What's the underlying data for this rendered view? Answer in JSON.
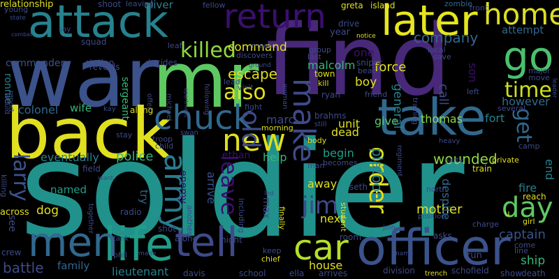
{
  "colors": {
    "background": "#000000",
    "palette": [
      "#440154",
      "#482878",
      "#3e4a89",
      "#31688e",
      "#26828e",
      "#1f9e89",
      "#35b779",
      "#6ece58",
      "#b5de2b",
      "#fde725"
    ]
  },
  "words": [
    {
      "text": "soldier",
      "color": "#21918c"
    },
    {
      "text": "find",
      "color": "#482878"
    },
    {
      "text": "war",
      "color": "#3b528b"
    },
    {
      "text": "mr",
      "color": "#5ec962"
    },
    {
      "text": "back",
      "color": "#e0e020"
    },
    {
      "text": "take",
      "color": "#31688e"
    },
    {
      "text": "attack",
      "color": "#26828e"
    },
    {
      "text": "later",
      "color": "#e6e61e"
    },
    {
      "text": "go",
      "color": "#4ac16d"
    },
    {
      "text": "home",
      "color": "#dddd25"
    },
    {
      "text": "return",
      "color": "#3b0f70"
    },
    {
      "text": "officer",
      "color": "#3b528b"
    },
    {
      "text": "life",
      "color": "#1f9e89"
    },
    {
      "text": "men",
      "color": "#31688e"
    },
    {
      "text": "tell",
      "color": "#3e4a89"
    },
    {
      "text": "chuck",
      "color": "#31688e"
    },
    {
      "text": "car",
      "color": "#b5de2b"
    },
    {
      "text": "new",
      "color": "#e0e020"
    },
    {
      "text": "army",
      "color": "#2a7b8e"
    },
    {
      "text": "day",
      "color": "#5ec962"
    },
    {
      "text": "take",
      "color": "#31688e"
    },
    {
      "text": "make",
      "color": "#3e4a89"
    },
    {
      "text": "killed",
      "color": "#8fd744"
    },
    {
      "text": "also",
      "color": "#e0e020"
    },
    {
      "text": "order",
      "color": "#e0e020"
    },
    {
      "text": "old",
      "color": "#3e4a89"
    },
    {
      "text": "time",
      "color": "#cce01e"
    },
    {
      "text": "jim",
      "color": "#3e4a89"
    },
    {
      "text": "leave",
      "color": "#3b0f70"
    },
    {
      "text": "get",
      "color": "#31688e"
    },
    {
      "text": "larry",
      "color": "#3b528b"
    },
    {
      "text": "escape",
      "color": "#e0e020"
    },
    {
      "text": "company",
      "color": "#31688e"
    },
    {
      "text": "command",
      "color": "#e0e020"
    },
    {
      "text": "wounded",
      "color": "#8fd744"
    },
    {
      "text": "eventually",
      "color": "#26828e"
    },
    {
      "text": "police",
      "color": "#35b779"
    },
    {
      "text": "help",
      "color": "#35b779"
    },
    {
      "text": "arrive",
      "color": "#3b528b"
    },
    {
      "text": "captain",
      "color": "#3b528b"
    },
    {
      "text": "mother",
      "color": "#e0e020"
    },
    {
      "text": "ship",
      "color": "#35b779"
    },
    {
      "text": "battle",
      "color": "#3e4a89"
    },
    {
      "text": "house",
      "color": "#e0e020"
    },
    {
      "text": "family",
      "color": "#31688e"
    },
    {
      "text": "lieutenant",
      "color": "#26828e"
    },
    {
      "text": "dead",
      "color": "#e0e020"
    },
    {
      "text": "platoon",
      "color": "#26828e"
    },
    {
      "text": "fort",
      "color": "#26828e"
    },
    {
      "text": "thomas",
      "color": "#8fd744"
    },
    {
      "text": "give",
      "color": "#5ec962"
    },
    {
      "text": "unit",
      "color": "#e0e020"
    },
    {
      "text": "marc",
      "color": "#3e4a89"
    },
    {
      "text": "begin",
      "color": "#1f9e89"
    },
    {
      "text": "ethan",
      "color": "#3b0f70"
    },
    {
      "text": "away",
      "color": "#e0e020"
    },
    {
      "text": "named",
      "color": "#1f9e89"
    },
    {
      "text": "dog",
      "color": "#e0e020"
    },
    {
      "text": "colonel",
      "color": "#31688e"
    },
    {
      "text": "wife",
      "color": "#35b779"
    },
    {
      "text": "however",
      "color": "#31688e"
    },
    {
      "text": "call",
      "color": "#3e4a89"
    },
    {
      "text": "general",
      "color": "#26828e"
    },
    {
      "text": "boy",
      "color": "#e0e020"
    },
    {
      "text": "force",
      "color": "#e0e020"
    },
    {
      "text": "malcolm",
      "color": "#35b779"
    },
    {
      "text": "one",
      "color": "#3b0f70"
    },
    {
      "text": "son",
      "color": "#3b0f70"
    },
    {
      "text": "attempt",
      "color": "#31688e"
    },
    {
      "text": "end",
      "color": "#26828e"
    },
    {
      "text": "fire",
      "color": "#2a7b8e"
    },
    {
      "text": "next",
      "color": "#e0e020"
    },
    {
      "text": "despite",
      "color": "#31688e"
    },
    {
      "text": "max",
      "color": "#3e4a89"
    },
    {
      "text": "try",
      "color": "#31688e"
    },
    {
      "text": "enemy",
      "color": "#3b0f70"
    },
    {
      "text": "see",
      "color": "#3e4a89"
    },
    {
      "text": "ronnie",
      "color": "#26828e"
    },
    {
      "text": "sergeant",
      "color": "#35b779"
    },
    {
      "text": "commander",
      "color": "#3b528b"
    },
    {
      "text": "oliver",
      "color": "#26828e"
    },
    {
      "text": "shoot",
      "color": "#3e4a89"
    },
    {
      "text": "leaving",
      "color": "#3e4a89"
    },
    {
      "text": "fellow",
      "color": "#3e4a89"
    },
    {
      "text": "greta",
      "color": "#e0e020"
    },
    {
      "text": "island",
      "color": "#e0e020"
    },
    {
      "text": "zombie",
      "color": "#31688e"
    },
    {
      "text": "front",
      "color": "#3e4a89"
    },
    {
      "text": "relationship",
      "color": "#e0e020"
    },
    {
      "text": "young",
      "color": "#3e4a89"
    },
    {
      "text": "state",
      "color": "#3e4a89"
    },
    {
      "text": "squad",
      "color": "#3e4a89"
    },
    {
      "text": "leaf",
      "color": "#3e4a89"
    },
    {
      "text": "year",
      "color": "#3e4a89"
    },
    {
      "text": "drive",
      "color": "#3e4a89"
    },
    {
      "text": "group",
      "color": "#3e4a89"
    },
    {
      "text": "station",
      "color": "#3e4a89"
    },
    {
      "text": "decides",
      "color": "#3e4a89"
    },
    {
      "text": "discovers",
      "color": "#3e4a89"
    },
    {
      "text": "meet",
      "color": "#3e4a89"
    },
    {
      "text": "last",
      "color": "#3e4a89"
    },
    {
      "text": "local",
      "color": "#3e4a89"
    },
    {
      "text": "save",
      "color": "#3e4a89"
    },
    {
      "text": "reveals",
      "color": "#3e4a89"
    },
    {
      "text": "ground",
      "color": "#3e4a89"
    },
    {
      "text": "town",
      "color": "#e0e020"
    },
    {
      "text": "sniper",
      "color": "#3e4a89"
    },
    {
      "text": "beach",
      "color": "#3e4a89"
    },
    {
      "text": "major",
      "color": "#3e4a89"
    },
    {
      "text": "move",
      "color": "#3e4a89"
    },
    {
      "text": "kill",
      "color": "#e0e020"
    },
    {
      "text": "ryan",
      "color": "#3e4a89"
    },
    {
      "text": "friend",
      "color": "#3e4a89"
    },
    {
      "text": "left",
      "color": "#3e4a89"
    },
    {
      "text": "lead",
      "color": "#3e4a89"
    },
    {
      "text": "visit",
      "color": "#3e4a89"
    },
    {
      "text": "woman",
      "color": "#3e4a89"
    },
    {
      "text": "fight",
      "color": "#3e4a89"
    },
    {
      "text": "training",
      "color": "#3e4a89"
    },
    {
      "text": "several",
      "color": "#3e4a89"
    },
    {
      "text": "camp",
      "color": "#3e4a89"
    },
    {
      "text": "kay",
      "color": "#3e4a89"
    },
    {
      "text": "along",
      "color": "#e0e020"
    },
    {
      "text": "michael",
      "color": "#3e4a89"
    },
    {
      "text": "following",
      "color": "#3e4a89"
    },
    {
      "text": "morning",
      "color": "#e0e020"
    },
    {
      "text": "brahms",
      "color": "#3e4a89"
    },
    {
      "text": "still",
      "color": "#3e4a89"
    },
    {
      "text": "would",
      "color": "#3e4a89"
    },
    {
      "text": "report",
      "color": "#3e4a89"
    },
    {
      "text": "offer",
      "color": "#3e4a89"
    },
    {
      "text": "apartment",
      "color": "#3e4a89"
    },
    {
      "text": "stay",
      "color": "#3e4a89"
    },
    {
      "text": "troop",
      "color": "#3e4a89"
    },
    {
      "text": "swan",
      "color": "#3e4a89"
    },
    {
      "text": "child",
      "color": "#3e4a89"
    },
    {
      "text": "body",
      "color": "#e0e020"
    },
    {
      "text": "man",
      "color": "#3e4a89"
    },
    {
      "text": "becomes",
      "color": "#3e4a89"
    },
    {
      "text": "regiment",
      "color": "#3e4a89"
    },
    {
      "text": "heavy",
      "color": "#3e4a89"
    },
    {
      "text": "party",
      "color": "#3e4a89"
    },
    {
      "text": "private",
      "color": "#e0e020"
    },
    {
      "text": "train",
      "color": "#e0e020"
    },
    {
      "text": "north",
      "color": "#3e4a89"
    },
    {
      "text": "reach",
      "color": "#e0e020"
    },
    {
      "text": "charge",
      "color": "#3e4a89"
    },
    {
      "text": "girl",
      "color": "#e0e020"
    },
    {
      "text": "field",
      "color": "#3e4a89"
    },
    {
      "text": "want",
      "color": "#3e4a89"
    },
    {
      "text": "killing",
      "color": "#3e4a89"
    },
    {
      "text": "radio",
      "color": "#3e4a89"
    },
    {
      "text": "together",
      "color": "#3e4a89"
    },
    {
      "text": "another",
      "color": "#3e4a89"
    },
    {
      "text": "including",
      "color": "#3e4a89"
    },
    {
      "text": "led",
      "color": "#3e4a89"
    },
    {
      "text": "finally",
      "color": "#e0e020"
    },
    {
      "text": "student",
      "color": "#e0e020"
    },
    {
      "text": "seth",
      "color": "#3e4a89"
    },
    {
      "text": "position",
      "color": "#3e4a89"
    },
    {
      "text": "join",
      "color": "#3e4a89"
    },
    {
      "text": "across",
      "color": "#e0e020"
    },
    {
      "text": "shot",
      "color": "#3e4a89"
    },
    {
      "text": "alone",
      "color": "#3e4a89"
    },
    {
      "text": "night",
      "color": "#3e4a89"
    },
    {
      "text": "room",
      "color": "#3e4a89"
    },
    {
      "text": "asks",
      "color": "#3e4a89"
    },
    {
      "text": "crew",
      "color": "#3e4a89"
    },
    {
      "text": "tank",
      "color": "#3e4a89"
    },
    {
      "text": "phil",
      "color": "#3e4a89"
    },
    {
      "text": "made",
      "color": "#3e4a89"
    },
    {
      "text": "chief",
      "color": "#e0e020"
    },
    {
      "text": "keep",
      "color": "#3e4a89"
    },
    {
      "text": "name",
      "color": "#3e4a89"
    },
    {
      "text": "come",
      "color": "#3e4a89"
    },
    {
      "text": "line",
      "color": "#3e4a89"
    },
    {
      "text": "run",
      "color": "#3e4a89"
    },
    {
      "text": "davis",
      "color": "#3e4a89"
    },
    {
      "text": "school",
      "color": "#3e4a89"
    },
    {
      "text": "ella",
      "color": "#3e4a89"
    },
    {
      "text": "arrives",
      "color": "#3e4a89"
    },
    {
      "text": "division",
      "color": "#3e4a89"
    },
    {
      "text": "trench",
      "color": "#e0e020"
    },
    {
      "text": "schofield",
      "color": "#3e4a89"
    },
    {
      "text": "show",
      "color": "#3e4a89"
    },
    {
      "text": "death",
      "color": "#3e4a89"
    },
    {
      "text": "combat",
      "color": "#3e4a89"
    },
    {
      "text": "say",
      "color": "#3e4a89"
    },
    {
      "text": "notice",
      "color": "#e0e020"
    },
    {
      "text": "u",
      "color": "#e0e020"
    },
    {
      "text": "leader",
      "color": "#3e4a89"
    }
  ]
}
